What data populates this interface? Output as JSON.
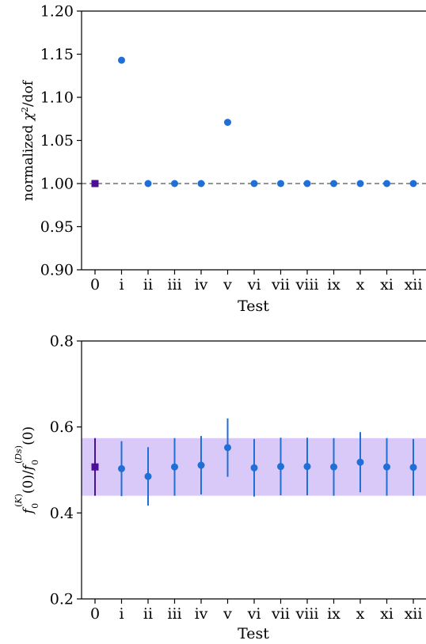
{
  "chart_data": [
    {
      "type": "scatter",
      "title": "",
      "xlabel": "Test",
      "ylabel": "normalized χ²/dof",
      "categories": [
        "0",
        "i",
        "ii",
        "iii",
        "iv",
        "v",
        "vi",
        "vii",
        "viii",
        "ix",
        "x",
        "xi",
        "xii"
      ],
      "ylim": [
        0.9,
        1.2
      ],
      "yticks": [
        "0.90",
        "0.95",
        "1.00",
        "1.05",
        "1.10",
        "1.15",
        "1.20"
      ],
      "reference_line": {
        "y": 1.0,
        "style": "dashed",
        "color": "#555555"
      },
      "series": [
        {
          "marker": "square",
          "color": "#4b0f96",
          "x": [
            "0"
          ],
          "y": [
            1.0
          ]
        },
        {
          "marker": "circle",
          "color": "#1f6fd6",
          "x": [
            "i",
            "ii",
            "iii",
            "iv",
            "v",
            "vi",
            "vii",
            "viii",
            "ix",
            "x",
            "xi",
            "xii"
          ],
          "y": [
            1.143,
            1.0,
            1.0,
            1.0,
            1.071,
            1.0,
            1.0,
            1.0,
            1.0,
            1.0,
            1.0,
            1.0
          ]
        }
      ]
    },
    {
      "type": "scatter",
      "title": "",
      "xlabel": "Test",
      "ylabel": "f0(K)(0)/f0(Ds)(0)",
      "categories": [
        "0",
        "i",
        "ii",
        "iii",
        "iv",
        "v",
        "vi",
        "vii",
        "viii",
        "ix",
        "x",
        "xi",
        "xii"
      ],
      "ylim": [
        0.2,
        0.8
      ],
      "yticks": [
        "0.2",
        "0.4",
        "0.6",
        "0.8"
      ],
      "band": {
        "ymin": 0.44,
        "ymax": 0.574,
        "color": "#d9c9f9"
      },
      "series": [
        {
          "marker": "square",
          "color": "#4b0f96",
          "x": [
            "0"
          ],
          "y": [
            0.507
          ],
          "yerr": [
            0.067
          ]
        },
        {
          "marker": "circle",
          "color": "#1f6fd6",
          "x": [
            "i",
            "ii",
            "iii",
            "iv",
            "v",
            "vi",
            "vii",
            "viii",
            "ix",
            "x",
            "xi",
            "xii"
          ],
          "y": [
            0.503,
            0.485,
            0.507,
            0.511,
            0.552,
            0.505,
            0.508,
            0.508,
            0.507,
            0.518,
            0.507,
            0.506
          ],
          "yerr": [
            0.064,
            0.068,
            0.067,
            0.068,
            0.068,
            0.067,
            0.067,
            0.067,
            0.067,
            0.07,
            0.067,
            0.066
          ]
        }
      ]
    }
  ]
}
